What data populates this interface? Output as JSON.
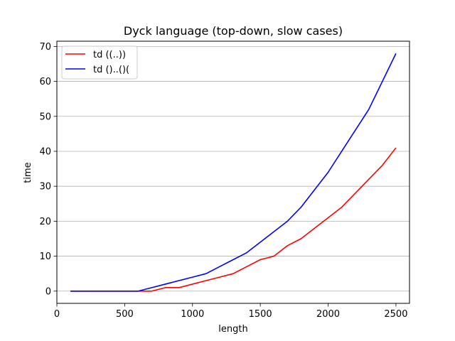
{
  "chart_data": {
    "type": "line",
    "title": "Dyck language (top-down, slow cases)",
    "xlabel": "length",
    "ylabel": "time",
    "xlim": [
      0,
      2600
    ],
    "ylim": [
      -3.5,
      71.5
    ],
    "xticks": [
      0,
      500,
      1000,
      1500,
      2000,
      2500
    ],
    "yticks": [
      0,
      10,
      20,
      30,
      40,
      50,
      60,
      70
    ],
    "grid": "horizontal",
    "legend_position": "top-left",
    "series": [
      {
        "name": "td ((..))",
        "color": "#ff0000",
        "x": [
          100,
          200,
          300,
          400,
          500,
          600,
          700,
          800,
          900,
          1000,
          1100,
          1200,
          1300,
          1400,
          1500,
          1600,
          1700,
          1800,
          1900,
          2000,
          2100,
          2200,
          2300,
          2400,
          2500
        ],
        "y": [
          0,
          0,
          0,
          0,
          0,
          0,
          0,
          1,
          1,
          2,
          3,
          4,
          5,
          7,
          9,
          10,
          13,
          15,
          18,
          21,
          24,
          28,
          32,
          36,
          41
        ]
      },
      {
        "name": "td ()..()(",
        "color": "#0000ff",
        "x": [
          100,
          200,
          300,
          400,
          500,
          600,
          700,
          800,
          900,
          1000,
          1100,
          1200,
          1300,
          1400,
          1500,
          1600,
          1700,
          1800,
          1900,
          2000,
          2100,
          2200,
          2300,
          2400,
          2500
        ],
        "y": [
          0,
          0,
          0,
          0,
          0,
          0,
          1,
          2,
          3,
          4,
          5,
          7,
          9,
          11,
          14,
          17,
          20,
          24,
          29,
          34,
          40,
          46,
          52,
          60,
          68
        ]
      }
    ]
  }
}
